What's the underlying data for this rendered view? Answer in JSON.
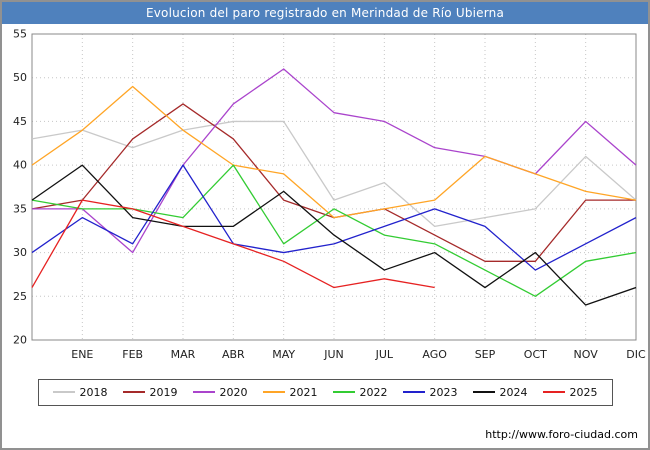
{
  "title": "Evolucion del paro registrado en Merindad de Río Ubierna",
  "footer": {
    "link": "http://www.foro-ciudad.com"
  },
  "chart_data": {
    "type": "line",
    "title": "Evolucion del paro registrado en Merindad de Río Ubierna",
    "x_labels": [
      "",
      "ENE",
      "FEB",
      "MAR",
      "ABR",
      "MAY",
      "JUN",
      "JUL",
      "AGO",
      "SEP",
      "OCT",
      "NOV",
      "DIC"
    ],
    "ylim": [
      20,
      55
    ],
    "y_ticks": [
      20,
      25,
      30,
      35,
      40,
      45,
      50,
      55
    ],
    "grid": true,
    "legend_position": "bottom",
    "series": [
      {
        "name": "2018",
        "color": "#c9c9c9",
        "values": [
          43,
          44,
          42,
          44,
          45,
          45,
          36,
          38,
          33,
          34,
          35,
          41,
          36
        ]
      },
      {
        "name": "2019",
        "color": "#a52a2a",
        "values": [
          35,
          36,
          43,
          47,
          43,
          36,
          34,
          35,
          32,
          29,
          29,
          36,
          36
        ]
      },
      {
        "name": "2020",
        "color": "#aa44cc",
        "values": [
          35,
          35,
          30,
          40,
          47,
          51,
          46,
          45,
          42,
          41,
          39,
          45,
          40
        ]
      },
      {
        "name": "2021",
        "color": "#ffa526",
        "values": [
          40,
          44,
          49,
          44,
          40,
          39,
          34,
          35,
          36,
          41,
          39,
          37,
          36
        ]
      },
      {
        "name": "2022",
        "color": "#33cc33",
        "values": [
          36,
          35,
          35,
          34,
          40,
          31,
          35,
          32,
          31,
          28,
          25,
          29,
          30
        ]
      },
      {
        "name": "2023",
        "color": "#2222cc",
        "values": [
          30,
          34,
          31,
          40,
          31,
          30,
          31,
          33,
          35,
          33,
          28,
          31,
          34
        ]
      },
      {
        "name": "2024",
        "color": "#111111",
        "values": [
          36,
          40,
          34,
          33,
          33,
          37,
          32,
          28,
          30,
          26,
          30,
          24,
          26
        ]
      },
      {
        "name": "2025",
        "color": "#e62222",
        "values": [
          26,
          36,
          35,
          33,
          31,
          29,
          26,
          27,
          26
        ]
      }
    ]
  }
}
